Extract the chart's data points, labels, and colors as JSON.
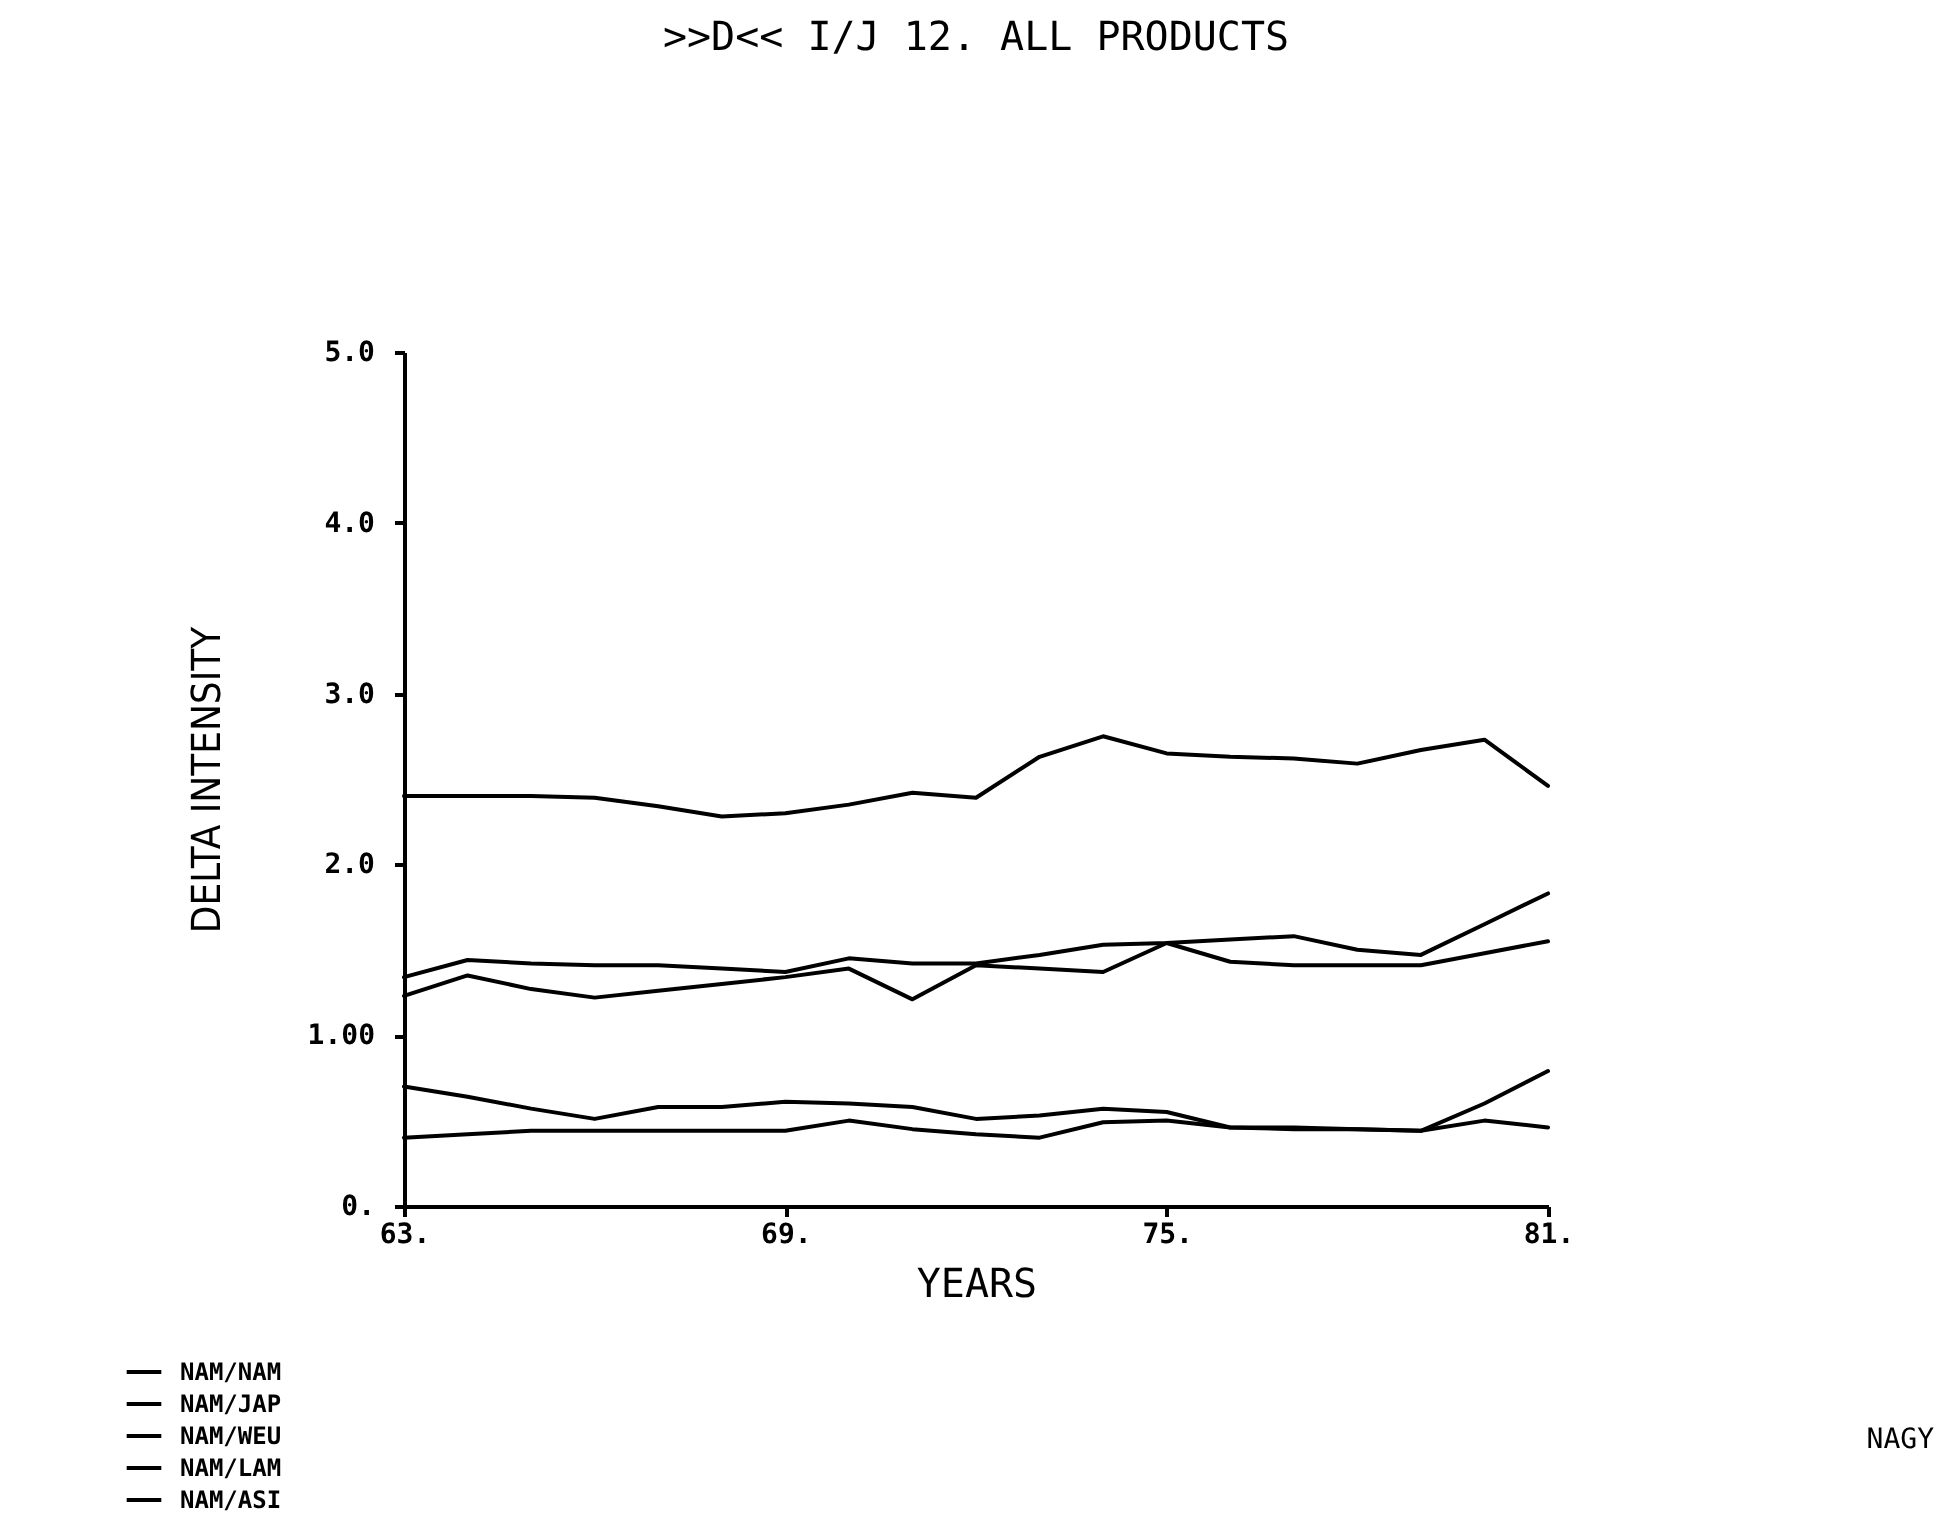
{
  "chart_data": {
    "type": "line",
    "title": ">>D<< I/J 12. ALL PRODUCTS",
    "xlabel": "YEARS",
    "ylabel": "DELTA INTENSITY",
    "x": [
      63,
      64,
      65,
      66,
      67,
      68,
      69,
      70,
      71,
      72,
      73,
      74,
      75,
      76,
      77,
      78,
      79,
      80,
      81
    ],
    "series": [
      {
        "name": "NAM/NAM",
        "color": "#000000",
        "values": [
          2.4,
          2.4,
          2.4,
          2.39,
          2.34,
          2.28,
          2.3,
          2.35,
          2.42,
          2.39,
          2.63,
          2.75,
          2.65,
          2.63,
          2.62,
          2.59,
          2.67,
          2.73,
          2.46
        ]
      },
      {
        "name": "NAM/JAP",
        "color": "#000000",
        "values": [
          1.23,
          1.35,
          1.27,
          1.22,
          1.26,
          1.3,
          1.34,
          1.39,
          1.21,
          1.41,
          1.39,
          1.37,
          1.54,
          1.43,
          1.41,
          1.41,
          1.41,
          1.48,
          1.55
        ]
      },
      {
        "name": "NAM/WEU",
        "color": "#000000",
        "values": [
          0.4,
          0.42,
          0.44,
          0.44,
          0.44,
          0.44,
          0.44,
          0.5,
          0.45,
          0.42,
          0.4,
          0.49,
          0.5,
          0.46,
          0.45,
          0.45,
          0.44,
          0.5,
          0.46
        ]
      },
      {
        "name": "NAM/LAM",
        "color": "#000000",
        "values": [
          1.34,
          1.44,
          1.42,
          1.41,
          1.41,
          1.39,
          1.37,
          1.45,
          1.42,
          1.42,
          1.47,
          1.53,
          1.54,
          1.56,
          1.58,
          1.5,
          1.47,
          1.65,
          1.83
        ]
      },
      {
        "name": "NAM/ASI",
        "color": "#000000",
        "values": [
          0.7,
          0.64,
          0.57,
          0.51,
          0.58,
          0.58,
          0.61,
          0.6,
          0.58,
          0.51,
          0.53,
          0.57,
          0.55,
          0.46,
          0.46,
          0.45,
          0.44,
          0.6,
          0.79
        ]
      }
    ],
    "xlim": [
      63,
      81
    ],
    "xticks": [
      {
        "value": 63,
        "label": "63."
      },
      {
        "value": 69,
        "label": "69."
      },
      {
        "value": 75,
        "label": "75."
      },
      {
        "value": 81,
        "label": "81."
      }
    ],
    "ylim": [
      0,
      5
    ],
    "yticks": [
      {
        "value": 0,
        "label": "0."
      },
      {
        "value": 1,
        "label": "1.00"
      },
      {
        "value": 2,
        "label": "2.0"
      },
      {
        "value": 3,
        "label": "3.0"
      },
      {
        "value": 4,
        "label": "4.0"
      },
      {
        "value": 5,
        "label": "5.0"
      }
    ],
    "legend": "bottom left",
    "grid": false,
    "marker": "none",
    "line_style": "solid",
    "annotations": [
      "NAGY"
    ]
  }
}
